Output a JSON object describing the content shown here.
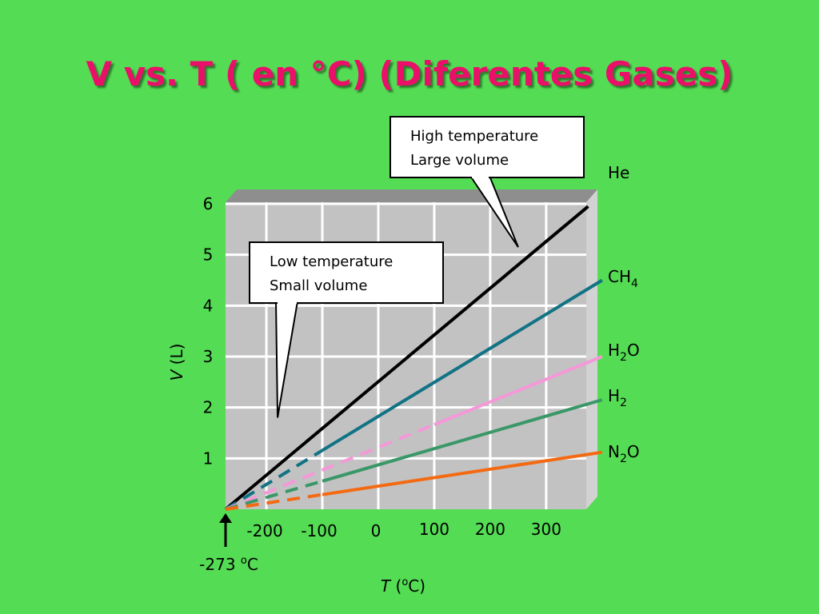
{
  "slide": {
    "title": "V vs. T ( en °C) (Diferentes  Gases)"
  },
  "chart_data": {
    "type": "line",
    "title": "",
    "xlabel": "T (oC)",
    "ylabel": "V (L)",
    "x_ticks": [
      -200,
      -100,
      0,
      100,
      200,
      300
    ],
    "y_ticks": [
      1,
      2,
      3,
      4,
      5,
      6
    ],
    "xlim": [
      -273,
      400
    ],
    "ylim": [
      0,
      6
    ],
    "grid": true,
    "absolute_zero_marker": {
      "value": -273,
      "label": "-273",
      "unit_prefix": "o",
      "unit": "C"
    },
    "series": [
      {
        "name": "He",
        "label_main": "He",
        "label_sub": "",
        "color": "#000000",
        "points": [
          [
            -273,
            0
          ],
          [
            -100,
            1.8
          ],
          [
            375,
            5.95
          ]
        ],
        "dashed_until": null
      },
      {
        "name": "CH4",
        "label_main": "CH",
        "label_sub": "4",
        "color": "#127385",
        "points": [
          [
            -273,
            0
          ],
          [
            -100,
            1.25
          ],
          [
            400,
            4.5
          ]
        ],
        "dashed_until": -100
      },
      {
        "name": "H2O",
        "label_main": "H",
        "label_sub": "2",
        "label_tail": "O",
        "color": "#f598d8",
        "points": [
          [
            -273,
            0
          ],
          [
            400,
            3.0
          ]
        ],
        "dashed_until": 100
      },
      {
        "name": "H2",
        "label_main": "H",
        "label_sub": "2",
        "color": "#3a9868",
        "points": [
          [
            -273,
            0
          ],
          [
            400,
            2.15
          ]
        ],
        "dashed_until": -100
      },
      {
        "name": "N2O",
        "label_main": "N",
        "label_sub": "2",
        "label_tail": "O",
        "color": "#f46a12",
        "points": [
          [
            -273,
            0
          ],
          [
            400,
            1.12
          ]
        ],
        "dashed_until": -100
      }
    ],
    "annotations": [
      {
        "id": "high",
        "line1": "High temperature",
        "line2": "Large volume",
        "points_to": [
          250,
          5.15
        ]
      },
      {
        "id": "low",
        "line1": "Low temperature",
        "line2": "Small volume",
        "points_to": [
          -180,
          1.8
        ]
      }
    ]
  },
  "colors": {
    "background": "#54dc54",
    "plot_face": "#c2c2c2",
    "plot_top": "#8e8e8e",
    "plot_side": "#d2d2d2",
    "grid": "#ffffff",
    "title": "#ea0f68"
  }
}
